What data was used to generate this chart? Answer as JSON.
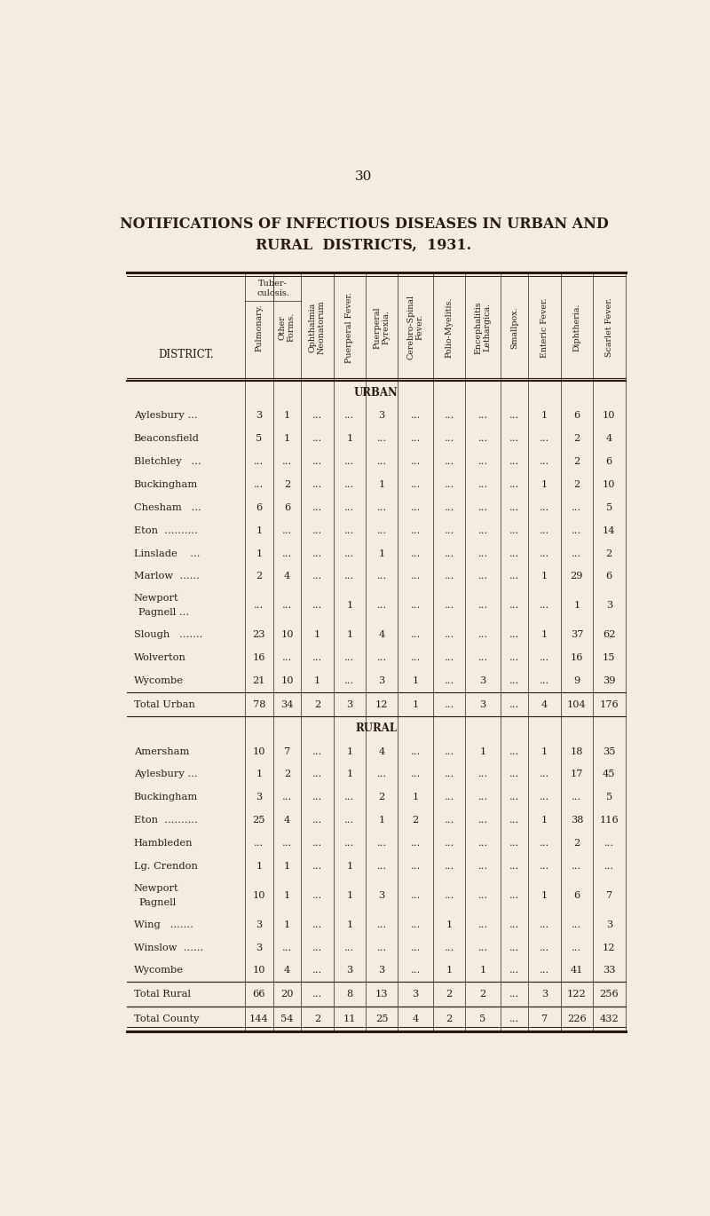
{
  "title_line1": "NOTIFICATIONS OF INFECTIOUS DISEASES IN URBAN AND",
  "title_line2": "RURAL  DISTRICTS,  1931.",
  "page_number": "30",
  "bg_color": "#f2ede0",
  "text_color": "#2a1a0e",
  "col_labels": [
    "Pulmonary.",
    "Other\nForms.",
    "Ophthalmia\nNeonatorum",
    "Puerperal Fever.",
    "Puerperal\nPyrexia.",
    "Cerebro-Spinal\nFever.",
    "Polio-Myelitis.",
    "Encephalitis\nLethargica.",
    "Smallpox.",
    "Enteric Fever.",
    "Diphtheria.",
    "Scarlet Fever."
  ],
  "urban_rows": [
    [
      "Aylesbury ...",
      "3",
      "1",
      "...",
      "...",
      "3",
      "...",
      "...",
      "...",
      "...",
      "1",
      "6",
      "10"
    ],
    [
      "Beaconsfield",
      "5",
      "1",
      "...",
      "1",
      "...",
      "...",
      "...",
      "...",
      "...",
      "...",
      "2",
      "4"
    ],
    [
      "Bletchley   ...",
      "...",
      "...",
      "...",
      "...",
      "...",
      "...",
      "...",
      "...",
      "...",
      "...",
      "2",
      "6"
    ],
    [
      "Buckingham",
      "...",
      "2",
      "...",
      "...",
      "1",
      "...",
      "...",
      "...",
      "...",
      "1",
      "2",
      "10"
    ],
    [
      "Chesham   ...",
      "6",
      "6",
      "...",
      "...",
      "...",
      "...",
      "...",
      "...",
      "...",
      "...",
      "...",
      "5"
    ],
    [
      "Eton  ..........",
      "1",
      "...",
      "...",
      "...",
      "...",
      "...",
      "...",
      "...",
      "...",
      "...",
      "...",
      "14"
    ],
    [
      "Linslade    ...",
      "1",
      "...",
      "...",
      "...",
      "1",
      "...",
      "...",
      "...",
      "...",
      "...",
      "...",
      "2"
    ],
    [
      "Marlow  ......",
      "2",
      "4",
      "...",
      "...",
      "...",
      "...",
      "...",
      "...",
      "...",
      "1",
      "29",
      "6"
    ],
    [
      "Newport\nPagnell ...",
      "...",
      "...",
      "...",
      "1",
      "...",
      "...",
      "...",
      "...",
      "...",
      "...",
      "1",
      "3"
    ],
    [
      "Slough   .......",
      "23",
      "10",
      "1",
      "1",
      "4",
      "...",
      "...",
      "...",
      "...",
      "1",
      "37",
      "62"
    ],
    [
      "Wolverton",
      "16",
      "...",
      "...",
      "...",
      "...",
      "...",
      "...",
      "...",
      "...",
      "...",
      "16",
      "15"
    ],
    [
      "Wycombe",
      "21",
      "10",
      "1",
      "...",
      "3",
      "1",
      "...",
      "3",
      "...",
      "...",
      "9",
      "39"
    ]
  ],
  "urban_total": [
    "Total Urban",
    "78",
    "34",
    "2",
    "3",
    "12",
    "1",
    "...",
    "3",
    "...",
    "4",
    "104",
    "176"
  ],
  "rural_rows": [
    [
      "Amersham",
      "10",
      "7",
      "...",
      "1",
      "4",
      "...",
      "...",
      "1",
      "...",
      "1",
      "18",
      "35"
    ],
    [
      "Aylesbury ...",
      "1",
      "2",
      "...",
      "1",
      "...",
      "...",
      "...",
      "...",
      "...",
      "...",
      "17",
      "45"
    ],
    [
      "Buckingham",
      "3",
      "...",
      "...",
      "...",
      "2",
      "1",
      "...",
      "...",
      "...",
      "...",
      "...",
      "5"
    ],
    [
      "Eton  ..........",
      "25",
      "4",
      "...",
      "...",
      "1",
      "2",
      "...",
      "...",
      "...",
      "1",
      "38",
      "116"
    ],
    [
      "Hambleden",
      "...",
      "...",
      "...",
      "...",
      "...",
      "...",
      "...",
      "...",
      "...",
      "...",
      "2",
      "..."
    ],
    [
      "Lg. Crendon",
      "1",
      "1",
      "...",
      "1",
      "...",
      "...",
      "...",
      "...",
      "...",
      "...",
      "...",
      "..."
    ],
    [
      "Newport\nPagnell",
      "10",
      "1",
      "...",
      "1",
      "3",
      "...",
      "...",
      "...",
      "...",
      "1",
      "6",
      "7"
    ],
    [
      "Wing   .......",
      "3",
      "1",
      "...",
      "1",
      "...",
      "...",
      "1",
      "...",
      "...",
      "...",
      "...",
      "3"
    ],
    [
      "Winslow  ......",
      "3",
      "...",
      "...",
      "...",
      "...",
      "...",
      "...",
      "...",
      "...",
      "...",
      "...",
      "12"
    ],
    [
      "Wycombe",
      "10",
      "4",
      "...",
      "3",
      "3",
      "...",
      "1",
      "1",
      "...",
      "...",
      "41",
      "33"
    ]
  ],
  "rural_total": [
    "Total Rural",
    "66",
    "20",
    "...",
    "8",
    "13",
    "3",
    "2",
    "2",
    "...",
    "3",
    "122",
    "256"
  ],
  "county_total": [
    "Total County",
    "144",
    "54",
    "2",
    "11",
    "25",
    "4",
    "2",
    "5",
    "...",
    "7",
    "226",
    "432"
  ]
}
